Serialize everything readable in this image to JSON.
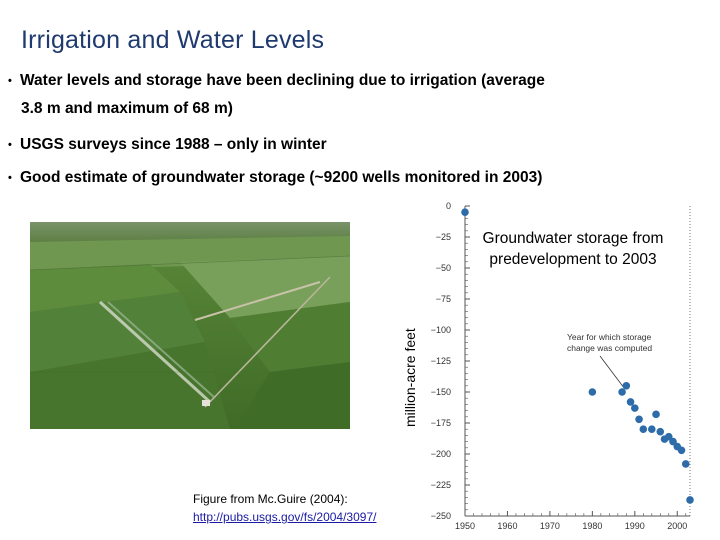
{
  "slide": {
    "title": "Irrigation and Water Levels",
    "bullets": [
      {
        "line1": "Water levels and storage have been declining due to irrigation (average",
        "line2": "3.8 m and maximum of 68 m)"
      },
      {
        "line1": "USGS surveys since 1988 – only in winter"
      },
      {
        "line1": "Good estimate of groundwater storage (~9200 wells monitored in 2003)"
      }
    ],
    "bullet_marker": "•",
    "caption": {
      "text": "Figure from Mc.Guire (2004):",
      "link": "http://pubs.usgs.gov/fs/2004/3097/"
    }
  },
  "chart_data": {
    "type": "scatter",
    "title": "Groundwater storage from predevelopment to 2003",
    "ylabel": "million-acre feet",
    "annotation": "Year for which storage change was computed",
    "xlim": [
      1950,
      2003
    ],
    "ylim": [
      -250,
      0
    ],
    "x_ticks": [
      1950,
      1960,
      1970,
      1980,
      1990,
      2000
    ],
    "y_ticks": [
      0,
      -25,
      -50,
      -75,
      -100,
      -125,
      -150,
      -175,
      -200,
      -225,
      -250
    ],
    "y_tick_labels": [
      "0",
      "−25",
      "−50",
      "−75",
      "−100",
      "−125",
      "−150",
      "−175",
      "−200",
      "−225",
      "−250"
    ],
    "points": [
      {
        "x": 1950,
        "y": -5
      },
      {
        "x": 1980,
        "y": -150
      },
      {
        "x": 1987,
        "y": -150
      },
      {
        "x": 1988,
        "y": -145
      },
      {
        "x": 1989,
        "y": -158
      },
      {
        "x": 1990,
        "y": -163
      },
      {
        "x": 1991,
        "y": -172
      },
      {
        "x": 1992,
        "y": -180
      },
      {
        "x": 1994,
        "y": -180
      },
      {
        "x": 1995,
        "y": -168
      },
      {
        "x": 1996,
        "y": -182
      },
      {
        "x": 1997,
        "y": -188
      },
      {
        "x": 1998,
        "y": -186
      },
      {
        "x": 1999,
        "y": -190
      },
      {
        "x": 2000,
        "y": -194
      },
      {
        "x": 2001,
        "y": -197
      },
      {
        "x": 2002,
        "y": -208
      },
      {
        "x": 2003,
        "y": -237
      }
    ],
    "colors": {
      "point": "#2d6ca8",
      "axis": "#555555",
      "text": "#333333"
    }
  }
}
